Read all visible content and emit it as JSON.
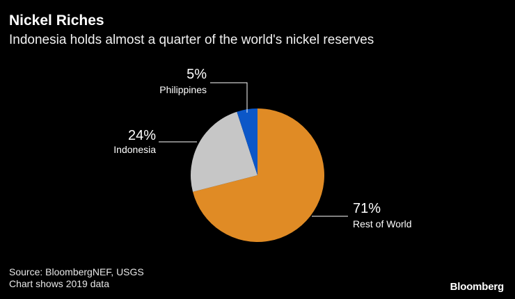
{
  "header": {
    "title": "Nickel Riches",
    "subtitle": "Indonesia holds almost a quarter of the world's nickel reserves"
  },
  "footer": {
    "source": "Source: BloombergNEF, USGS",
    "note": "Chart shows 2019 data",
    "brand": "Bloomberg"
  },
  "chart_data": {
    "type": "pie",
    "categories": [
      "Rest of World",
      "Indonesia",
      "Philippines"
    ],
    "values": [
      71,
      24,
      5
    ],
    "value_labels": [
      "71%",
      "24%",
      "5%"
    ],
    "colors": [
      "#e08b25",
      "#c6c6c6",
      "#0c57c8"
    ],
    "start": "12 o'clock, clockwise",
    "legend": "none (direct labels)"
  }
}
